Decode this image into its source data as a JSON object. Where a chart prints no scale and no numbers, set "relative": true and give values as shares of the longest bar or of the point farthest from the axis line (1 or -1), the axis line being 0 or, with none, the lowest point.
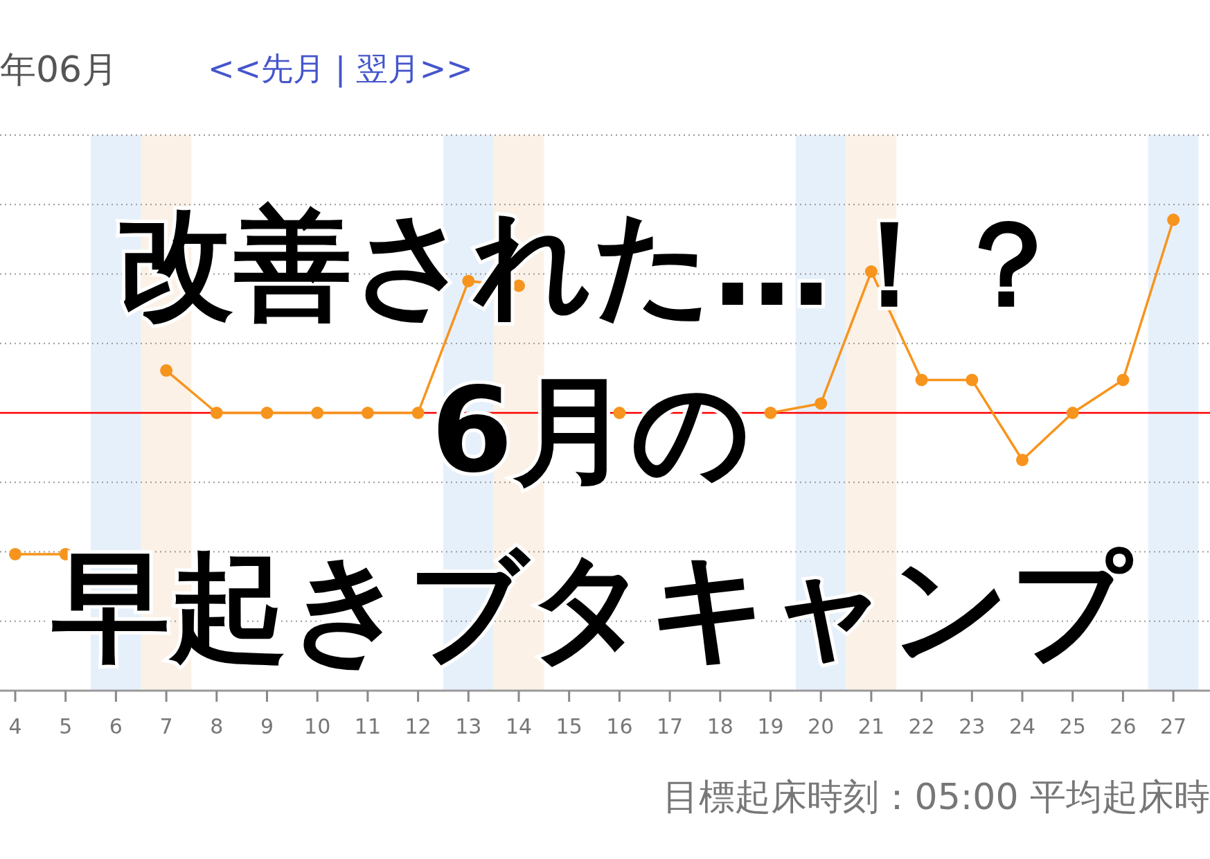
{
  "chart_data": {
    "type": "line",
    "title": "年06月",
    "subtitle": "<<先月 | 翌月>>",
    "categories": [
      "4",
      "5",
      "6",
      "7",
      "8",
      "9",
      "10",
      "11",
      "12",
      "13",
      "14",
      "15",
      "16",
      "17",
      "18",
      "19",
      "20",
      "21",
      "22",
      "23",
      "24",
      "25",
      "26",
      "27"
    ],
    "relative": true,
    "series": [
      {
        "color": "#f7941d",
        "values": [
          0.29,
          0.29,
          null,
          0.68,
          0.59,
          0.59,
          0.59,
          0.59,
          0.59,
          0.87,
          0.86,
          null,
          0.59,
          null,
          null,
          0.59,
          0.61,
          0.89,
          0.66,
          0.66,
          0.49,
          0.59,
          0.66,
          1
        ]
      }
    ],
    "marker": "circle",
    "line_style": "solid",
    "grid": "y",
    "ref_lines": [
      {
        "axis": "y",
        "value": 0.59,
        "color": "#ff0000",
        "line_style": "solid"
      }
    ],
    "bands": [
      {
        "axis": "x",
        "from": "6",
        "to": "6",
        "color": "#e6f0fb"
      },
      {
        "axis": "x",
        "from": "7",
        "to": "7",
        "color": "#fbf1e6"
      },
      {
        "axis": "x",
        "from": "13",
        "to": "13",
        "color": "#e6f0fb"
      },
      {
        "axis": "x",
        "from": "14",
        "to": "14",
        "color": "#fbf1e6"
      },
      {
        "axis": "x",
        "from": "20",
        "to": "20",
        "color": "#e6f0fb"
      },
      {
        "axis": "x",
        "from": "21",
        "to": "21",
        "color": "#fbf1e6"
      },
      {
        "axis": "x",
        "from": "27",
        "to": "27",
        "color": "#e6f0fb"
      }
    ],
    "annotations": [
      "改善された…！？",
      "6月の",
      "早起きブタキャンプ",
      "目標起床時刻：05:00 平均起床時"
    ]
  }
}
